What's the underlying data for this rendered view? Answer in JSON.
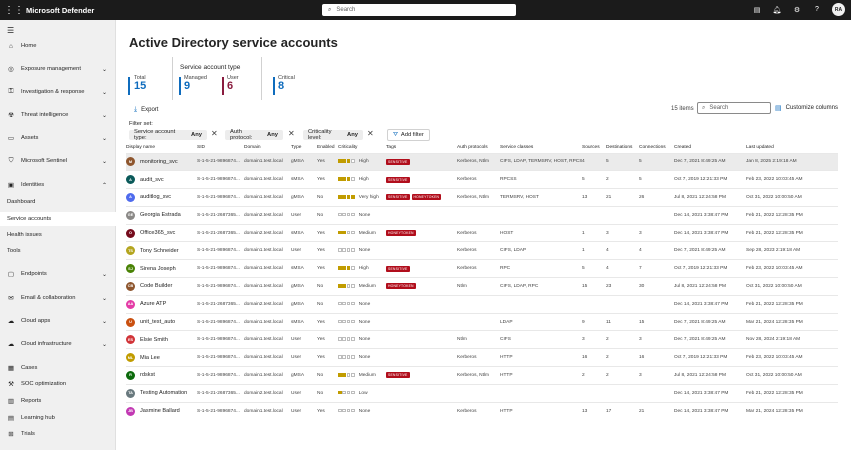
{
  "topbar": {
    "app_name": "Microsoft Defender",
    "search_placeholder": "Search",
    "avatar": "RA"
  },
  "sidebar": {
    "home": "Home",
    "exposure": "Exposure management",
    "investigation": "Investigation & response",
    "threat": "Threat intelligence",
    "assets": "Assets",
    "sentinel": "Microsoft Sentinel",
    "identities": "Identities",
    "sub_dashboard": "Dashboard",
    "sub_service": "Service accounts",
    "sub_health": "Health issues",
    "sub_tools": "Tools",
    "endpoints": "Endpoints",
    "email": "Email & collaboration",
    "cloudapps": "Cloud apps",
    "cloudinfra": "Cloud infrastructure",
    "cases": "Cases",
    "soc": "SOC optimization",
    "reports": "Reports",
    "learning": "Learning hub",
    "trials": "Trials"
  },
  "page": {
    "title": "Active Directory service accounts",
    "kpi": {
      "total_label": "Total",
      "total_value": "15",
      "group_label": "Service account type",
      "managed_label": "Managed",
      "managed_value": "9",
      "user_label": "User",
      "user_value": "6",
      "critical_label": "Critical",
      "critical_value": "8"
    },
    "export_label": "Export",
    "items_count": "15 items",
    "search_placeholder": "Search",
    "customize_label": "Customize columns",
    "filter_set_label": "Filter set:",
    "filters": [
      {
        "key": "Service account type:",
        "value": "Any"
      },
      {
        "key": "Auth protocol:",
        "value": "Any"
      },
      {
        "key": "Criticality level:",
        "value": "Any"
      }
    ],
    "add_filter_label": "Add filter"
  },
  "colors": {
    "total": "#0f6cbd",
    "managed": "#0f6cbd",
    "user": "#8a1c3f",
    "critical": "#0f6cbd",
    "crit_on": "#c19c00",
    "tag": "#b10e1c"
  },
  "table": {
    "columns": [
      "Display name",
      "SID",
      "Domain",
      "Type",
      "Enabled",
      "Criticality",
      "Tags",
      "Auth protocols",
      "Service classes",
      "Sources",
      "Destinations",
      "Connections",
      "Created",
      "Last updated"
    ],
    "rows": [
      {
        "initials": "M",
        "color": "#8e562e",
        "name": "monitoring_svc",
        "sid": "S-1-5-21-9896874...",
        "domain": "domain1.test.local",
        "type": "gMSA",
        "enabled": "Yes",
        "crit_level": 3,
        "crit": "High",
        "tags": [
          "SENSITIVE"
        ],
        "auth": "Kerberos, Ntlm",
        "classes": "CIFS, LDAP, TERMSRV, HOST, RPCSS",
        "sources": "4",
        "dest": "5",
        "conn": "5",
        "created": "Dec 7, 2021 8:49:25 AM",
        "updated": "Jan 8, 2025 2:19:18 AM"
      },
      {
        "initials": "A",
        "color": "#0b5a5a",
        "name": "audit_svc",
        "sid": "S-1-5-21-9896874...",
        "domain": "domain1.test.local",
        "type": "sMSA",
        "enabled": "Yes",
        "crit_level": 3,
        "crit": "High",
        "tags": [
          "SENSITIVE"
        ],
        "auth": "Kerberos",
        "classes": "RPCSS",
        "sources": "5",
        "dest": "2",
        "conn": "5",
        "created": "Oct 7, 2019 12:21:33 PM",
        "updated": "Feb 23, 2022 10:03:45 AM"
      },
      {
        "initials": "A",
        "color": "#4f6bed",
        "name": "auditlog_svc",
        "sid": "S-1-5-21-9896874...",
        "domain": "domain1.test.local",
        "type": "gMSA",
        "enabled": "No",
        "crit_level": 4,
        "crit": "Very high",
        "tags": [
          "SENSITIVE",
          "HONEYTOKEN"
        ],
        "auth": "Kerberos, Ntlm",
        "classes": "TERMSRV, HOST",
        "sources": "13",
        "dest": "21",
        "conn": "26",
        "created": "Jul 8, 2021 12:24:58 PM",
        "updated": "Oct 31, 2022 10:00:50 AM"
      },
      {
        "initials": "GE",
        "color": "#8a8886",
        "name": "Georgia Estrada",
        "sid": "S-1-5-21-2687365...",
        "domain": "domain2.test.local",
        "type": "User",
        "enabled": "No",
        "crit_level": 0,
        "crit": "None",
        "tags": [],
        "auth": "",
        "classes": "",
        "sources": "",
        "dest": "",
        "conn": "",
        "created": "Dec 14, 2021 3:38:47 PM",
        "updated": "Feb 21, 2022 12:28:35 PM"
      },
      {
        "initials": "O",
        "color": "#750b1c",
        "name": "Office365_svc",
        "sid": "S-1-5-21-2687365...",
        "domain": "domain2.test.local",
        "type": "sMSA",
        "enabled": "Yes",
        "crit_level": 2,
        "crit": "Medium",
        "tags": [
          "HONEYTOKEN"
        ],
        "auth": "Kerberos",
        "classes": "HOST",
        "sources": "1",
        "dest": "3",
        "conn": "3",
        "created": "Dec 14, 2021 3:38:47 PM",
        "updated": "Feb 21, 2022 12:28:35 PM"
      },
      {
        "initials": "TS",
        "color": "#b4a51f",
        "name": "Tony Schneider",
        "sid": "S-1-5-21-9896874...",
        "domain": "domain1.test.local",
        "type": "User",
        "enabled": "Yes",
        "crit_level": 0,
        "crit": "None",
        "tags": [],
        "auth": "Kerberos",
        "classes": "CIFS, LDAP",
        "sources": "1",
        "dest": "4",
        "conn": "4",
        "created": "Dec 7, 2021 8:49:25 AM",
        "updated": "Sep 28, 2023 2:19:18 AM"
      },
      {
        "initials": "SJ",
        "color": "#498205",
        "name": "Sirena Joseph",
        "sid": "S-1-5-21-9896874...",
        "domain": "domain1.test.local",
        "type": "sMSA",
        "enabled": "Yes",
        "crit_level": 3,
        "crit": "High",
        "tags": [
          "SENSITIVE"
        ],
        "auth": "Kerberos",
        "classes": "RPC",
        "sources": "5",
        "dest": "4",
        "conn": "7",
        "created": "Oct 7, 2019 12:21:33 PM",
        "updated": "Feb 23, 2022 10:03:45 AM"
      },
      {
        "initials": "CB",
        "color": "#8e562e",
        "name": "Code Builder",
        "sid": "S-1-5-21-9896874...",
        "domain": "domain1.test.local",
        "type": "gMSA",
        "enabled": "No",
        "crit_level": 2,
        "crit": "Medium",
        "tags": [
          "HONEYTOKEN"
        ],
        "auth": "Ntlm",
        "classes": "CIFS, LDAP, RPC",
        "sources": "15",
        "dest": "23",
        "conn": "30",
        "created": "Jul 8, 2021 12:24:58 PM",
        "updated": "Oct 31, 2022 10:00:50 AM"
      },
      {
        "initials": "AA",
        "color": "#e43ba6",
        "name": "Azure ATP",
        "sid": "S-1-5-21-2687365...",
        "domain": "domain2.test.local",
        "type": "gMSA",
        "enabled": "No",
        "crit_level": 0,
        "crit": "None",
        "tags": [],
        "auth": "",
        "classes": "",
        "sources": "",
        "dest": "",
        "conn": "",
        "created": "Dec 14, 2021 3:38:47 PM",
        "updated": "Feb 21, 2022 12:28:35 PM"
      },
      {
        "initials": "U",
        "color": "#ca5010",
        "name": "unit_test_auto",
        "sid": "S-1-5-21-9896874...",
        "domain": "domain1.test.local",
        "type": "sMSA",
        "enabled": "Yes",
        "crit_level": 0,
        "crit": "None",
        "tags": [],
        "auth": "",
        "classes": "LDAP",
        "sources": "9",
        "dest": "11",
        "conn": "15",
        "created": "Dec 7, 2021 8:49:25 AM",
        "updated": "Mar 21, 2024 12:28:35 PM"
      },
      {
        "initials": "ES",
        "color": "#d13438",
        "name": "Elsie Smith",
        "sid": "S-1-5-21-9896874...",
        "domain": "domain1.test.local",
        "type": "User",
        "enabled": "Yes",
        "crit_level": 0,
        "crit": "None",
        "tags": [],
        "auth": "Ntlm",
        "classes": "CIFS",
        "sources": "3",
        "dest": "2",
        "conn": "3",
        "created": "Dec 7, 2021 8:49:25 AM",
        "updated": "Nov 28, 2024 2:19:18 AM"
      },
      {
        "initials": "ML",
        "color": "#c19c00",
        "name": "Mia Lee",
        "sid": "S-1-5-21-9896874...",
        "domain": "domain1.test.local",
        "type": "User",
        "enabled": "Yes",
        "crit_level": 0,
        "crit": "None",
        "tags": [],
        "auth": "Kerberos",
        "classes": "HTTP",
        "sources": "16",
        "dest": "2",
        "conn": "16",
        "created": "Oct 7, 2019 12:21:33 PM",
        "updated": "Feb 23, 2022 10:03:45 AM"
      },
      {
        "initials": "R",
        "color": "#0b6a0b",
        "name": "rdskst",
        "sid": "S-1-5-21-9896874...",
        "domain": "domain1.test.local",
        "type": "gMSA",
        "enabled": "No",
        "crit_level": 2,
        "crit": "Medium",
        "tags": [
          "SENSITIVE"
        ],
        "auth": "Kerberos, Ntlm",
        "classes": "HTTP",
        "sources": "2",
        "dest": "2",
        "conn": "3",
        "created": "Jul 8, 2021 12:24:58 PM",
        "updated": "Oct 31, 2022 10:00:50 AM"
      },
      {
        "initials": "TA",
        "color": "#69797e",
        "name": "Testing Automation",
        "sid": "S-1-5-21-2687365...",
        "domain": "domain2.test.local",
        "type": "User",
        "enabled": "No",
        "crit_level": 1,
        "crit": "Low",
        "tags": [],
        "auth": "",
        "classes": "",
        "sources": "",
        "dest": "",
        "conn": "",
        "created": "Dec 14, 2021 3:38:47 PM",
        "updated": "Feb 21, 2022 12:28:35 PM"
      },
      {
        "initials": "JB",
        "color": "#c239b3",
        "name": "Jasmine Ballard",
        "sid": "S-1-5-21-9896874...",
        "domain": "domain1.test.local",
        "type": "User",
        "enabled": "Yes",
        "crit_level": 0,
        "crit": "None",
        "tags": [],
        "auth": "Kerberos",
        "classes": "HTTP",
        "sources": "13",
        "dest": "17",
        "conn": "21",
        "created": "Dec 14, 2021 3:38:47 PM",
        "updated": "Mar 21, 2024 12:28:35 PM"
      }
    ]
  }
}
